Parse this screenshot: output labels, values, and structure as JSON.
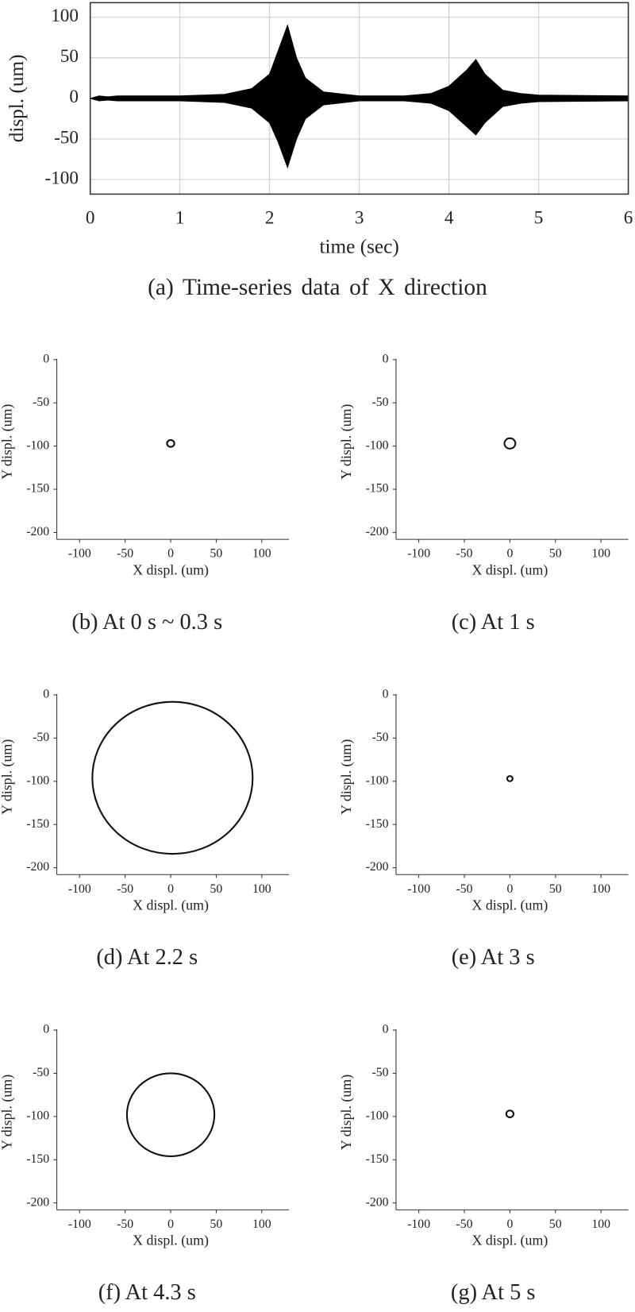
{
  "chart_data": [
    {
      "type": "band",
      "caption": "(a)  Time-series data of X direction",
      "xlabel": "time (sec)",
      "ylabel": "displ. (um)",
      "x": [
        0,
        0.1,
        0.2,
        0.3,
        0.5,
        1,
        1.5,
        1.8,
        2.0,
        2.1,
        2.2,
        2.3,
        2.4,
        2.6,
        3,
        3.5,
        3.8,
        4.0,
        4.2,
        4.3,
        4.4,
        4.6,
        4.8,
        5,
        6
      ],
      "high": [
        0,
        3,
        2,
        3,
        3,
        3,
        5,
        12,
        30,
        60,
        90,
        50,
        25,
        8,
        3,
        3,
        6,
        15,
        35,
        48,
        30,
        10,
        6,
        4,
        3
      ],
      "low": [
        0,
        -3,
        -2,
        -3,
        -3,
        -3,
        -5,
        -12,
        -30,
        -55,
        -85,
        -50,
        -25,
        -8,
        -3,
        -3,
        -6,
        -15,
        -35,
        -45,
        -30,
        -10,
        -6,
        -4,
        -3
      ],
      "color": "#000000",
      "xlim": [
        0,
        6
      ],
      "ylim": [
        -118,
        118
      ],
      "xticks": [
        0,
        1,
        2,
        3,
        4,
        5,
        6
      ],
      "yticks": [
        -100,
        -50,
        0,
        50,
        100
      ],
      "grid": true
    },
    {
      "type": "orbit",
      "caption": "(b)  At  0 s ~ 0.3 s",
      "xlabel": "X displ. (um)",
      "ylabel": "Y displ. (um)",
      "cx": 0,
      "cy": -97,
      "r": 4,
      "xlim": [
        -125,
        130
      ],
      "ylim": [
        -208,
        0
      ],
      "xticks": [
        -100,
        -50,
        0,
        50,
        100
      ],
      "yticks": [
        -200,
        -150,
        -100,
        -50,
        0
      ]
    },
    {
      "type": "orbit",
      "caption": "(c)  At  1 s",
      "xlabel": "X displ. (um)",
      "ylabel": "Y displ. (um)",
      "cx": 0,
      "cy": -97,
      "r": 6,
      "xlim": [
        -125,
        130
      ],
      "ylim": [
        -208,
        0
      ],
      "xticks": [
        -100,
        -50,
        0,
        50,
        100
      ],
      "yticks": [
        -200,
        -150,
        -100,
        -50,
        0
      ]
    },
    {
      "type": "orbit",
      "caption": "(d)  At  2.2 s",
      "xlabel": "X displ. (um)",
      "ylabel": "Y displ. (um)",
      "cx": 2,
      "cy": -96,
      "r": 88,
      "xlim": [
        -125,
        130
      ],
      "ylim": [
        -208,
        0
      ],
      "xticks": [
        -100,
        -50,
        0,
        50,
        100
      ],
      "yticks": [
        -200,
        -150,
        -100,
        -50,
        0
      ]
    },
    {
      "type": "orbit",
      "caption": "(e)  At  3 s",
      "xlabel": "X displ. (um)",
      "ylabel": "Y displ. (um)",
      "cx": 0,
      "cy": -97,
      "r": 3,
      "xlim": [
        -125,
        130
      ],
      "ylim": [
        -208,
        0
      ],
      "xticks": [
        -100,
        -50,
        0,
        50,
        100
      ],
      "yticks": [
        -200,
        -150,
        -100,
        -50,
        0
      ]
    },
    {
      "type": "orbit",
      "caption": "(f)  At  4.3 s",
      "xlabel": "X displ. (um)",
      "ylabel": "Y displ. (um)",
      "cx": 0,
      "cy": -98,
      "r": 48,
      "xlim": [
        -125,
        130
      ],
      "ylim": [
        -208,
        0
      ],
      "xticks": [
        -100,
        -50,
        0,
        50,
        100
      ],
      "yticks": [
        -200,
        -150,
        -100,
        -50,
        0
      ]
    },
    {
      "type": "orbit",
      "caption": "(g)  At  5 s",
      "xlabel": "X displ. (um)",
      "ylabel": "Y displ. (um)",
      "cx": 0,
      "cy": -97,
      "r": 4,
      "xlim": [
        -125,
        130
      ],
      "ylim": [
        -208,
        0
      ],
      "xticks": [
        -100,
        -50,
        0,
        50,
        100
      ],
      "yticks": [
        -200,
        -150,
        -100,
        -50,
        0
      ]
    }
  ]
}
